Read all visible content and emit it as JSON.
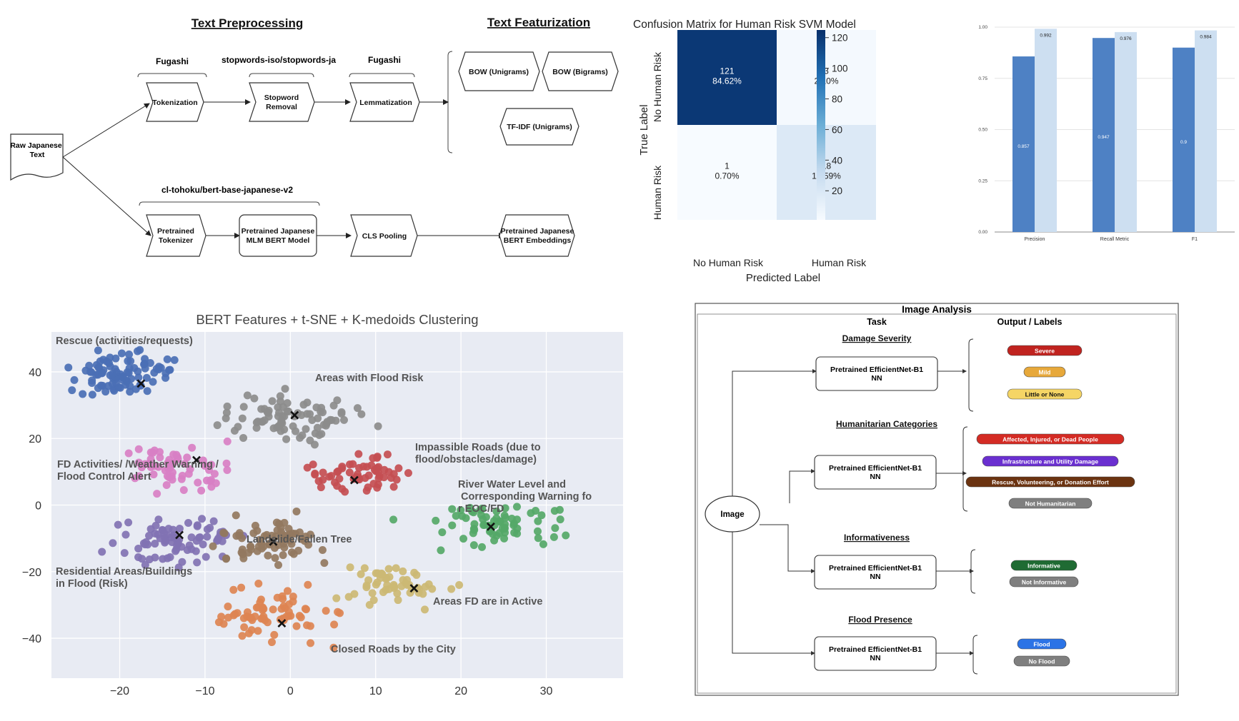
{
  "pipeline": {
    "section_preprocessing": "Text Preprocessing",
    "section_featurization": "Text Featurization",
    "input_node": [
      "Raw Japanese",
      "Text"
    ],
    "brace_tokenization": "Fugashi",
    "brace_stopword": "stopwords-iso/stopwords-ja",
    "brace_lemma": "Fugashi",
    "brace_bert": "cl-tohoku/bert-base-japanese-v2",
    "node_tokenization": [
      "Tokenization"
    ],
    "node_stopword": [
      "Stopword",
      "Removal"
    ],
    "node_lemma": [
      "Lemmatization"
    ],
    "node_bow_uni": [
      "BOW (Unigrams)"
    ],
    "node_bow_bi": [
      "BOW (Bigrams)"
    ],
    "node_tfidf": [
      "TF-IDF (Unigrams)"
    ],
    "node_pre_tok": [
      "Pretrained",
      "Tokenizer"
    ],
    "node_mlm": [
      "Pretrained Japanese",
      "MLM BERT Model"
    ],
    "node_cls": [
      "CLS Pooling"
    ],
    "node_emb": [
      "Pretrained Japanese",
      "BERT Embeddings"
    ]
  },
  "confusion": {
    "title": "Confusion Matrix for Human Risk SVM Model",
    "ylabel": "True Label",
    "xlabel": "Predicted Label",
    "row_labels": [
      "No Human Risk",
      "Human Risk"
    ],
    "col_labels": [
      "No Human Risk",
      "Human Risk"
    ],
    "cells": [
      [
        {
          "count": "121",
          "pct": "84.62%",
          "value": 121
        },
        {
          "count": "3",
          "pct": "2.10%",
          "value": 3
        }
      ],
      [
        {
          "count": "1",
          "pct": "0.70%",
          "value": 1
        },
        {
          "count": "18",
          "pct": "12.59%",
          "value": 18
        }
      ]
    ],
    "colorbar_ticks": [
      "120",
      "100",
      "80",
      "60",
      "40",
      "20"
    ],
    "colorbar_values": [
      120,
      100,
      80,
      60,
      40,
      20
    ],
    "colorbar_range": [
      1,
      125
    ],
    "color_high": "#08306b",
    "color_low": "#f7fbff"
  },
  "chart_data": [
    {
      "type": "bar",
      "categories": [
        "Precision",
        "Recall Metric",
        "F1"
      ],
      "series": [
        {
          "values": [
            0.857,
            0.947,
            0.9
          ],
          "labels": [
            "0.857",
            "0.947",
            "0.9"
          ],
          "color": "#4e81c4"
        },
        {
          "values": [
            0.992,
            0.976,
            0.984
          ],
          "labels": [
            "0.992",
            "0.976",
            "0.984"
          ],
          "color": "#cddff1"
        }
      ],
      "yticks": [
        "0.00",
        "0.25",
        "0.50",
        "0.75",
        "1.00"
      ],
      "ylim": [
        0,
        1.0
      ]
    },
    {
      "type": "scatter",
      "title": "BERT Features + t-SNE + K-medoids Clustering",
      "xlim": [
        -28,
        39
      ],
      "ylim": [
        -52,
        52
      ],
      "xticks": [
        -20,
        -10,
        0,
        10,
        20,
        30
      ],
      "xtick_labels": [
        "−20",
        "−10",
        "0",
        "10",
        "20",
        "30"
      ],
      "yticks": [
        40,
        20,
        0,
        -20,
        -40
      ],
      "ytick_labels": [
        "40",
        "20",
        "0",
        "−20",
        "−40"
      ],
      "background": "#e8ebf3",
      "clusters": [
        {
          "name": "Rescue (activities/requests)",
          "color": "#4a6fb5",
          "center": [
            -20,
            40
          ],
          "spread": [
            4.2,
            4.8
          ],
          "n": 90,
          "medoid": [
            -17.5,
            36.5
          ]
        },
        {
          "name": "Areas with Flood Risk",
          "color": "#8c8c8c",
          "center": [
            0,
            26
          ],
          "spread": [
            5.2,
            4.8
          ],
          "n": 85,
          "medoid": [
            0.5,
            27
          ]
        },
        {
          "name": "Impassible Roads (due to flood/obstacles/damage)",
          "color": "#c44e52",
          "center": [
            8,
            9
          ],
          "spread": [
            3.8,
            4.2
          ],
          "n": 60,
          "medoid": [
            7.5,
            7.5
          ]
        },
        {
          "name": "FD Activities/ /Weather Warning / Flood Control Alert",
          "color": "#d87fc4",
          "center": [
            -13,
            11
          ],
          "spread": [
            4.6,
            4.5
          ],
          "n": 60,
          "medoid": [
            -11,
            13.5
          ]
        },
        {
          "name": "River Water Level and Corresponding Warning for EOC/FD",
          "color": "#55a868",
          "center": [
            24,
            -6
          ],
          "spread": [
            6,
            4.2
          ],
          "n": 70,
          "medoid": [
            23.5,
            -6.5
          ]
        },
        {
          "name": "Residential Areas/Buildings in Flood (Risk)",
          "color": "#8172b3",
          "center": [
            -14,
            -11
          ],
          "spread": [
            5,
            5
          ],
          "n": 80,
          "medoid": [
            -13,
            -9
          ]
        },
        {
          "name": "Landslide/Fallen Tree",
          "color": "#937860",
          "center": [
            -2,
            -11
          ],
          "spread": [
            4.2,
            5
          ],
          "n": 70,
          "medoid": [
            -2,
            -11
          ]
        },
        {
          "name": "Areas FD are in Active",
          "color": "#ccb974",
          "center": [
            12,
            -24
          ],
          "spread": [
            4.5,
            4.2
          ],
          "n": 55,
          "medoid": [
            14.5,
            -25
          ]
        },
        {
          "name": "Closed Roads by the City",
          "color": "#dd8452",
          "center": [
            -2,
            -33
          ],
          "spread": [
            4.5,
            6
          ],
          "n": 70,
          "medoid": [
            -1,
            -35.5
          ]
        }
      ]
    }
  ],
  "image_analysis": {
    "title": "Image Analysis",
    "col_task": "Task",
    "col_output": "Output /  Labels",
    "image_node": "Image",
    "model_line1": "Pretrained EfficientNet-B1",
    "model_line2": "NN",
    "tasks": [
      {
        "name": "Damage Severity",
        "labels": [
          {
            "text": "Severe",
            "color": "#c0231f",
            "text_color": "#ffffff"
          },
          {
            "text": "Mild",
            "color": "#e7a83a",
            "text_color": "#ffffff"
          },
          {
            "text": "Little or None",
            "color": "#f5d565",
            "text_color": "#111111"
          }
        ]
      },
      {
        "name": "Humanitarian Categories",
        "labels": [
          {
            "text": "Affected, Injured, or Dead People",
            "color": "#d42b24",
            "text_color": "#ffffff"
          },
          {
            "text": "Infrastructure and Utility Damage",
            "color": "#6a2fd0",
            "text_color": "#ffffff"
          },
          {
            "text": "Rescue, Volunteering, or Donation Effort",
            "color": "#6b3310",
            "text_color": "#ffffff"
          },
          {
            "text": "Not Humanitarian",
            "color": "#7f7f7f",
            "text_color": "#ffffff"
          }
        ]
      },
      {
        "name": "Informativeness",
        "labels": [
          {
            "text": "Informative",
            "color": "#1f6b33",
            "text_color": "#ffffff"
          },
          {
            "text": "Not Informative",
            "color": "#7f7f7f",
            "text_color": "#ffffff"
          }
        ]
      },
      {
        "name": "Flood Presence",
        "labels": [
          {
            "text": "Flood",
            "color": "#2b73e6",
            "text_color": "#ffffff"
          },
          {
            "text": "No Flood",
            "color": "#7f7f7f",
            "text_color": "#ffffff"
          }
        ]
      }
    ]
  }
}
